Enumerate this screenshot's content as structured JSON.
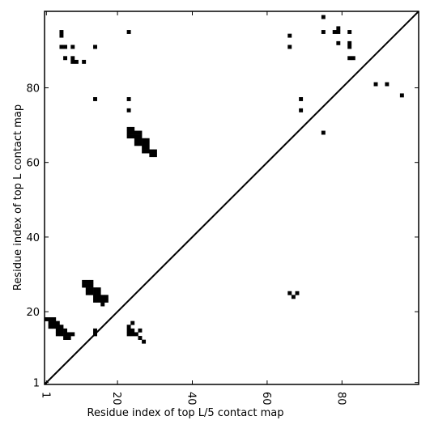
{
  "chart_data": {
    "type": "heatmap",
    "title": "",
    "xlabel": "Residue index of top L/5 contact map",
    "ylabel": "Residue index of top L contact map",
    "xlim": [
      1,
      100
    ],
    "ylim": [
      1,
      100
    ],
    "x_ticks": [
      1,
      20,
      40,
      60,
      80
    ],
    "y_ticks": [
      1,
      20,
      40,
      60,
      80
    ],
    "x_tick_labels": [
      "1",
      "20",
      "40",
      "60",
      "80"
    ],
    "y_tick_labels": [
      "1",
      "20",
      "40",
      "60",
      "80"
    ],
    "grid": false,
    "legend": "none",
    "diagonal_line": true,
    "colors": {
      "cell": "#000000",
      "background": "#ffffff",
      "frame": "#000000"
    },
    "contacts_top_L": [
      [
        5,
        95
      ],
      [
        5,
        94
      ],
      [
        5,
        91
      ],
      [
        6,
        91
      ],
      [
        6,
        88
      ],
      [
        8,
        91
      ],
      [
        8,
        88
      ],
      [
        8,
        87
      ],
      [
        9,
        87
      ],
      [
        11,
        87
      ],
      [
        14,
        91
      ],
      [
        14,
        77
      ],
      [
        23,
        95
      ],
      [
        23,
        77
      ],
      [
        23,
        74
      ],
      [
        23,
        69
      ],
      [
        23,
        68
      ],
      [
        23,
        67
      ],
      [
        24,
        69
      ],
      [
        24,
        68
      ],
      [
        24,
        67
      ],
      [
        25,
        68
      ],
      [
        25,
        67
      ],
      [
        25,
        66
      ],
      [
        25,
        65
      ],
      [
        26,
        68
      ],
      [
        26,
        67
      ],
      [
        26,
        66
      ],
      [
        26,
        65
      ],
      [
        27,
        66
      ],
      [
        27,
        65
      ],
      [
        27,
        64
      ],
      [
        27,
        63
      ],
      [
        28,
        66
      ],
      [
        28,
        65
      ],
      [
        28,
        64
      ],
      [
        28,
        63
      ],
      [
        29,
        63
      ],
      [
        29,
        62
      ],
      [
        30,
        63
      ],
      [
        30,
        62
      ],
      [
        66,
        94
      ],
      [
        66,
        91
      ],
      [
        69,
        77
      ],
      [
        69,
        74
      ],
      [
        75,
        99
      ],
      [
        75,
        95
      ],
      [
        75,
        68
      ],
      [
        78,
        95
      ],
      [
        79,
        96
      ],
      [
        79,
        95
      ],
      [
        79,
        92
      ],
      [
        82,
        95
      ],
      [
        82,
        92
      ],
      [
        82,
        91
      ],
      [
        82,
        88
      ],
      [
        83,
        88
      ],
      [
        89,
        81
      ],
      [
        92,
        81
      ],
      [
        96,
        78
      ]
    ],
    "contacts_top_L5": [
      [
        1,
        18
      ],
      [
        2,
        18
      ],
      [
        2,
        17
      ],
      [
        2,
        16
      ],
      [
        3,
        18
      ],
      [
        3,
        17
      ],
      [
        3,
        16
      ],
      [
        4,
        17
      ],
      [
        4,
        16
      ],
      [
        4,
        15
      ],
      [
        4,
        14
      ],
      [
        5,
        16
      ],
      [
        5,
        15
      ],
      [
        5,
        14
      ],
      [
        6,
        15
      ],
      [
        6,
        14
      ],
      [
        6,
        13
      ],
      [
        7,
        14
      ],
      [
        7,
        13
      ],
      [
        8,
        14
      ],
      [
        11,
        28
      ],
      [
        11,
        27
      ],
      [
        12,
        28
      ],
      [
        12,
        27
      ],
      [
        12,
        26
      ],
      [
        12,
        25
      ],
      [
        13,
        28
      ],
      [
        13,
        27
      ],
      [
        13,
        26
      ],
      [
        13,
        25
      ],
      [
        14,
        26
      ],
      [
        14,
        25
      ],
      [
        14,
        24
      ],
      [
        14,
        23
      ],
      [
        14,
        15
      ],
      [
        14,
        14
      ],
      [
        15,
        26
      ],
      [
        15,
        25
      ],
      [
        15,
        24
      ],
      [
        15,
        23
      ],
      [
        16,
        24
      ],
      [
        16,
        23
      ],
      [
        16,
        22
      ],
      [
        17,
        24
      ],
      [
        17,
        23
      ],
      [
        23,
        16
      ],
      [
        23,
        15
      ],
      [
        23,
        14
      ],
      [
        24,
        17
      ],
      [
        24,
        15
      ],
      [
        24,
        14
      ],
      [
        25,
        14
      ],
      [
        26,
        15
      ],
      [
        26,
        13
      ],
      [
        27,
        12
      ],
      [
        66,
        25
      ],
      [
        67,
        24
      ],
      [
        68,
        25
      ]
    ]
  }
}
